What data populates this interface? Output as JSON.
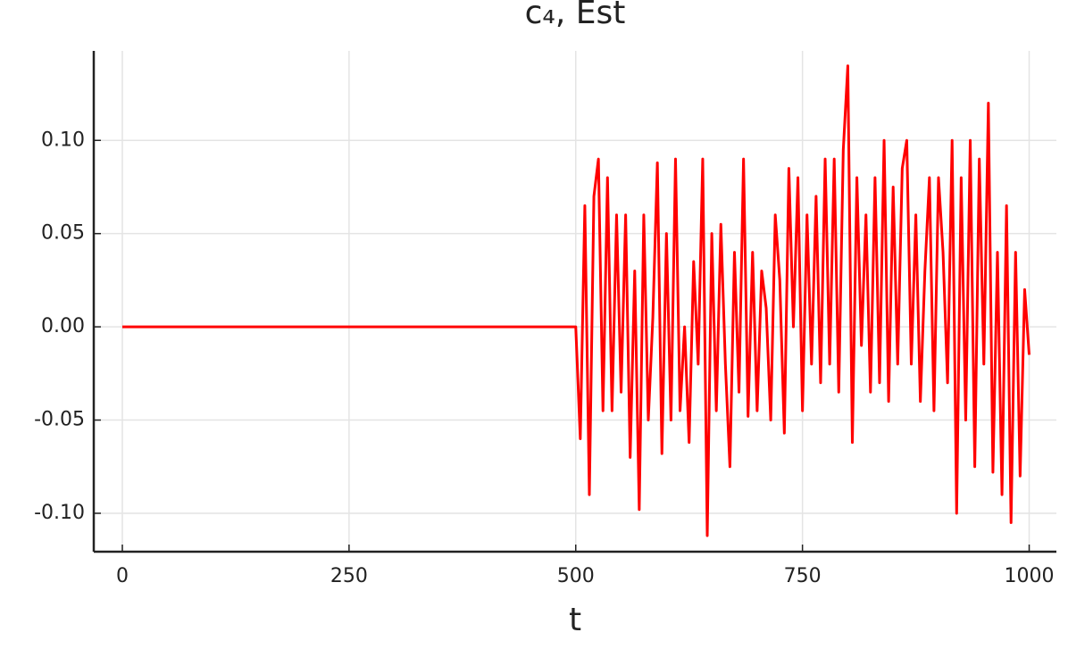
{
  "chart_data": {
    "type": "line",
    "title": "c₄, Est",
    "x_label": "t",
    "x": [
      0,
      500,
      505,
      510,
      515,
      520,
      525,
      530,
      535,
      540,
      545,
      550,
      555,
      560,
      565,
      570,
      575,
      580,
      585,
      590,
      595,
      600,
      605,
      610,
      615,
      620,
      625,
      630,
      635,
      640,
      645,
      650,
      655,
      660,
      665,
      670,
      675,
      680,
      685,
      690,
      695,
      700,
      705,
      710,
      715,
      720,
      725,
      730,
      735,
      740,
      745,
      750,
      755,
      760,
      765,
      770,
      775,
      780,
      785,
      790,
      795,
      800,
      805,
      810,
      815,
      820,
      825,
      830,
      835,
      840,
      845,
      850,
      855,
      860,
      865,
      870,
      875,
      880,
      885,
      890,
      895,
      900,
      905,
      910,
      915,
      920,
      925,
      930,
      935,
      940,
      945,
      950,
      955,
      960,
      965,
      970,
      975,
      980,
      985,
      990,
      995,
      1000
    ],
    "values": [
      0,
      0,
      -0.06,
      0.065,
      -0.09,
      0.07,
      0.09,
      -0.045,
      0.08,
      -0.045,
      0.06,
      -0.035,
      0.06,
      -0.07,
      0.03,
      -0.098,
      0.06,
      -0.05,
      0.005,
      0.088,
      -0.068,
      0.05,
      -0.05,
      0.09,
      -0.045,
      0.0,
      -0.062,
      0.035,
      -0.02,
      0.09,
      -0.112,
      0.05,
      -0.045,
      0.055,
      -0.02,
      -0.075,
      0.04,
      -0.035,
      0.09,
      -0.048,
      0.04,
      -0.045,
      0.03,
      0.01,
      -0.05,
      0.06,
      0.025,
      -0.057,
      0.085,
      0.0,
      0.08,
      -0.045,
      0.06,
      -0.02,
      0.07,
      -0.03,
      0.09,
      -0.02,
      0.09,
      -0.035,
      0.095,
      0.14,
      -0.062,
      0.08,
      -0.01,
      0.06,
      -0.035,
      0.08,
      -0.03,
      0.1,
      -0.04,
      0.075,
      -0.02,
      0.085,
      0.1,
      -0.02,
      0.06,
      -0.04,
      0.03,
      0.08,
      -0.045,
      0.08,
      0.04,
      -0.03,
      0.1,
      -0.1,
      0.08,
      -0.05,
      0.1,
      -0.075,
      0.09,
      -0.02,
      0.12,
      -0.078,
      0.04,
      -0.09,
      0.065,
      -0.105,
      0.04,
      -0.08,
      0.02,
      -0.015
    ],
    "color": "#ff0000",
    "xlim": [
      -31.5,
      1030
    ],
    "xticks": [
      0,
      250,
      500,
      750,
      1000
    ],
    "ylim": [
      -0.1206,
      0.148
    ],
    "yticks": [
      {
        "value": -0.1,
        "label": "-0.10"
      },
      {
        "value": -0.05,
        "label": "-0.05"
      },
      {
        "value": 0,
        "label": "0.00"
      },
      {
        "value": 0.05,
        "label": "0.05"
      },
      {
        "value": 0.1,
        "label": "0.10"
      }
    ],
    "grid": true
  }
}
